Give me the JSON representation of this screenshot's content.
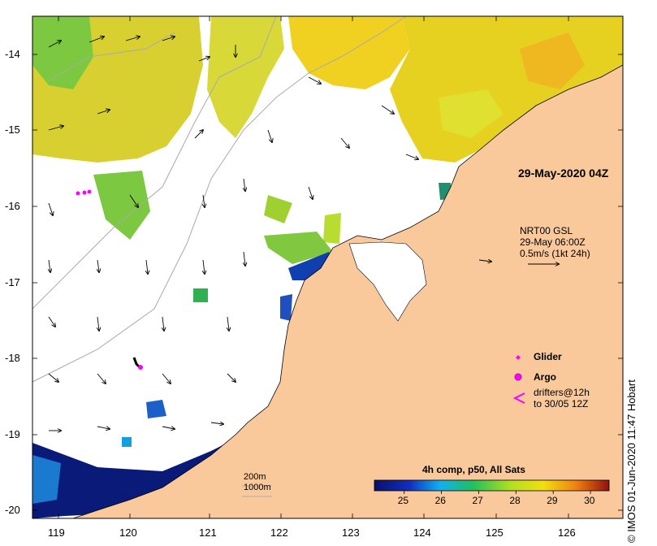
{
  "timestamp": "29-May-2020 04Z",
  "wind_legend": {
    "line1": "NRT00 GSL",
    "line2": "29-May 06:00Z",
    "line3": "0.5m/s (1kt 24h)"
  },
  "markers": {
    "glider": "Glider",
    "argo": "Argo",
    "drifters_l1": "drifters@12h",
    "drifters_l2": "to 30/05 12Z"
  },
  "contours": {
    "a": "200m",
    "b": "1000m"
  },
  "colorbar": {
    "title": "4h comp, p50, All Sats",
    "ticks": [
      "25",
      "26",
      "27",
      "28",
      "29",
      "30"
    ],
    "min": 24.2,
    "max": 30.5
  },
  "axes": {
    "lat_ticks": [
      "-14",
      "-15",
      "-16",
      "-17",
      "-18",
      "-19",
      "-20"
    ],
    "lon_ticks": [
      "119",
      "120",
      "121",
      "122",
      "123",
      "124",
      "125",
      "126"
    ]
  },
  "credit": "© IMOS 01-Jun-2020 11:47 Hobart",
  "colors": {
    "land": "#f9c99c",
    "sst_warm": "#e6d020",
    "sst_cold": "#0a1a78",
    "marker": "#ff00ff"
  }
}
